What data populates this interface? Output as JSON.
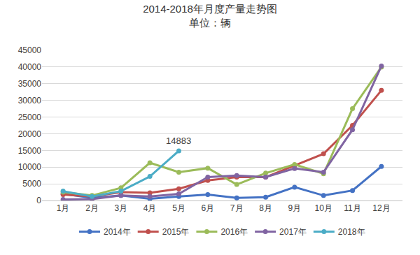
{
  "chart_data": {
    "type": "line",
    "title": "2014-2018年月度产量走势图",
    "subtitle": "单位：辆",
    "categories": [
      "1月",
      "2月",
      "3月",
      "4月",
      "5月",
      "6月",
      "7月",
      "8月",
      "9月",
      "10月",
      "11月",
      "12月"
    ],
    "series": [
      {
        "name": "2014年",
        "color": "#4472c4",
        "values": [
          2000,
          800,
          1500,
          500,
          1200,
          1800,
          800,
          1000,
          4000,
          1500,
          3000,
          10200
        ]
      },
      {
        "name": "2015年",
        "color": "#c0504d",
        "values": [
          1800,
          1200,
          2500,
          2300,
          3500,
          6000,
          7000,
          7000,
          10500,
          14000,
          22500,
          33000
        ]
      },
      {
        "name": "2016年",
        "color": "#9bbb59",
        "values": [
          2500,
          1500,
          3800,
          11300,
          8500,
          9700,
          4800,
          8200,
          10800,
          8000,
          27500,
          40000
        ]
      },
      {
        "name": "2017年",
        "color": "#8064a2",
        "values": [
          300,
          400,
          1500,
          1200,
          2000,
          7000,
          7500,
          7000,
          9600,
          8500,
          21200,
          40300
        ]
      },
      {
        "name": "2018年",
        "color": "#4bacc6",
        "values": [
          2800,
          1200,
          2800,
          7200,
          14883,
          null,
          null,
          null,
          null,
          null,
          null,
          null
        ]
      }
    ],
    "annotations": [
      {
        "series": "2018年",
        "category": "5月",
        "text": "14883"
      }
    ],
    "ylim": [
      0,
      45000
    ],
    "yticks": [
      0,
      5000,
      10000,
      15000,
      20000,
      25000,
      30000,
      35000,
      40000,
      45000
    ],
    "grid": true,
    "legend": "bottom",
    "marker": "circle"
  }
}
